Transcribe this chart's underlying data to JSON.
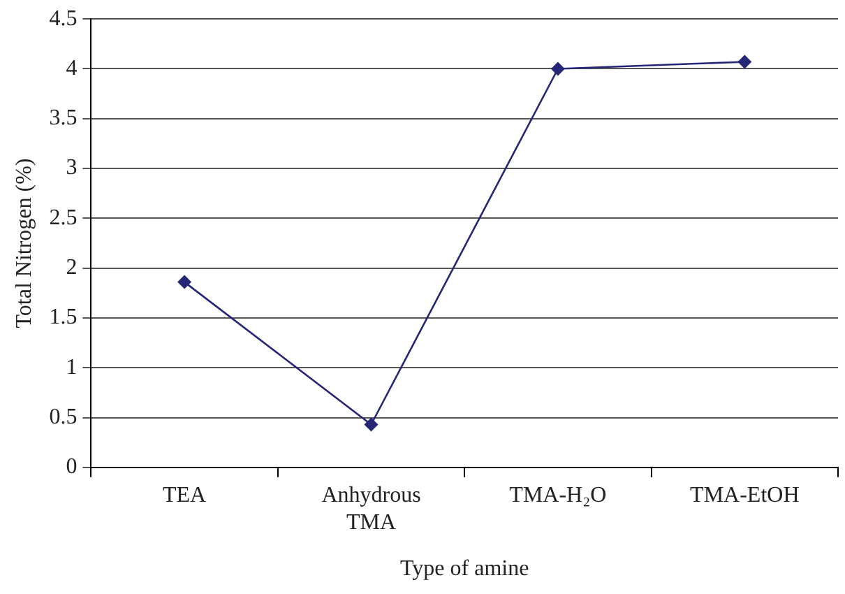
{
  "chart_data": {
    "type": "line",
    "xlabel": "Type of amine",
    "ylabel": "Total Nitrogen (%)",
    "categories": [
      "TEA",
      "Anhydrous TMA",
      "TMA-H₂O",
      "TMA-EtOH"
    ],
    "series": [
      {
        "color": "#262677",
        "values": [
          1.86,
          0.43,
          4.0,
          4.07
        ]
      }
    ],
    "ylim": [
      0,
      4.5
    ],
    "yticks": [
      0,
      0.5,
      1,
      1.5,
      2,
      2.5,
      3,
      3.5,
      4,
      4.5
    ],
    "grid": "y",
    "legend": false,
    "marker": "diamond",
    "line_style": "solid"
  }
}
